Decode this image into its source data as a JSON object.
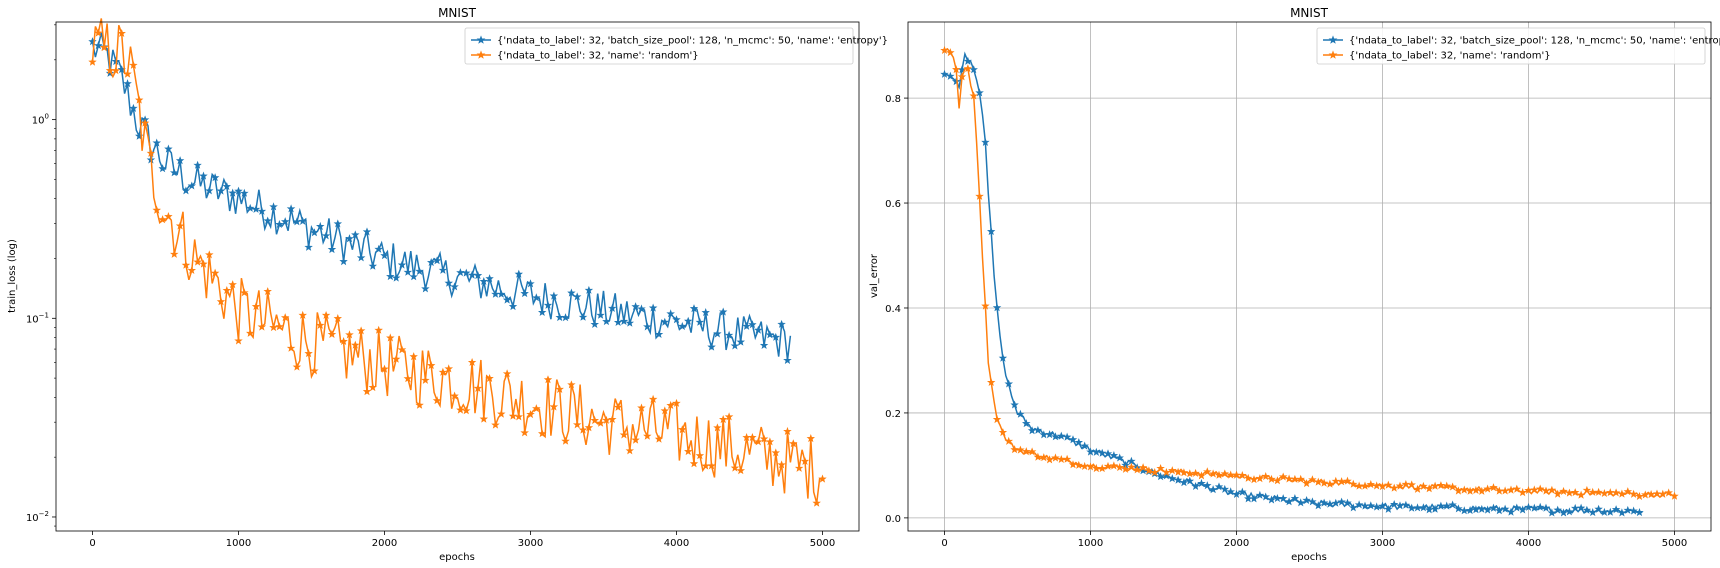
{
  "figure": {
    "background": "#ffffff"
  },
  "chart_data": [
    {
      "type": "line",
      "title": "MNIST",
      "xlabel": "epochs",
      "ylabel": "train_loss (log)",
      "yscale": "log",
      "xlim": [
        -250,
        5250
      ],
      "ylim": [
        0.0085,
        3.1
      ],
      "grid": false,
      "legend_placement": "top-right",
      "xticks": [
        0,
        1000,
        2000,
        3000,
        4000,
        5000
      ],
      "xtick_labels": [
        "0",
        "1000",
        "2000",
        "3000",
        "4000",
        "5000"
      ],
      "yticks": [
        1,
        0.1,
        0.01
      ],
      "ytick_labels": [
        {
          "base": "10",
          "exp": "0"
        },
        {
          "base": "10",
          "exp": "−1"
        },
        {
          "base": "10",
          "exp": "−2"
        }
      ],
      "series": [
        {
          "name": "{'ndata_to_label': 32, 'batch_size_pool': 128, 'n_mcmc': 50, 'name': 'entropy'}",
          "color": "#1f77b4",
          "marker": "star",
          "noise_band": 0.1,
          "x": [
            0,
            100,
            200,
            300,
            400,
            500,
            700,
            1000,
            1500,
            2000,
            2500,
            3000,
            3500,
            4000,
            4500,
            4780
          ],
          "y": [
            2.3,
            2.1,
            1.6,
            1.0,
            0.75,
            0.6,
            0.48,
            0.4,
            0.28,
            0.2,
            0.16,
            0.13,
            0.11,
            0.095,
            0.082,
            0.076
          ]
        },
        {
          "name": "{'ndata_to_label': 32, 'name': 'random'}",
          "color": "#ff7f0e",
          "marker": "star",
          "noise_band": 0.17,
          "x": [
            0,
            100,
            200,
            250,
            300,
            350,
            400,
            500,
            700,
            1000,
            1500,
            2000,
            2500,
            3000,
            3500,
            4000,
            4500,
            5000
          ],
          "y": [
            2.3,
            2.25,
            2.15,
            1.9,
            1.3,
            0.8,
            0.55,
            0.35,
            0.2,
            0.11,
            0.075,
            0.058,
            0.048,
            0.038,
            0.03,
            0.026,
            0.021,
            0.017
          ]
        }
      ]
    },
    {
      "type": "line",
      "title": "MNIST",
      "xlabel": "epochs",
      "ylabel": "val_error",
      "yscale": "linear",
      "xlim": [
        -250,
        5250
      ],
      "ylim": [
        -0.025,
        0.945
      ],
      "grid": true,
      "legend_placement": "top-right",
      "xticks": [
        0,
        1000,
        2000,
        3000,
        4000,
        5000
      ],
      "xtick_labels": [
        "0",
        "1000",
        "2000",
        "3000",
        "4000",
        "5000"
      ],
      "yticks": [
        0.0,
        0.2,
        0.4,
        0.6,
        0.8
      ],
      "ytick_labels": [
        "0.0",
        "0.2",
        "0.4",
        "0.6",
        "0.8"
      ],
      "series": [
        {
          "name": "{'ndata_to_label': 32, 'batch_size_pool': 128, 'n_mcmc': 50, 'name': 'entropy'}",
          "color": "#1f77b4",
          "marker": "star",
          "noise_band": 0.006,
          "x": [
            0,
            50,
            100,
            130,
            150,
            200,
            250,
            280,
            300,
            350,
            400,
            450,
            500,
            600,
            800,
            1000,
            1200,
            1500,
            2000,
            2500,
            3000,
            3500,
            4000,
            4500,
            4780
          ],
          "y": [
            0.85,
            0.84,
            0.82,
            0.88,
            0.88,
            0.86,
            0.8,
            0.72,
            0.62,
            0.42,
            0.3,
            0.24,
            0.2,
            0.17,
            0.155,
            0.13,
            0.11,
            0.08,
            0.045,
            0.028,
            0.022,
            0.019,
            0.016,
            0.014,
            0.013
          ]
        },
        {
          "name": "{'ndata_to_label': 32, 'name': 'random'}",
          "color": "#ff7f0e",
          "marker": "star",
          "noise_band": 0.005,
          "x": [
            0,
            50,
            80,
            100,
            120,
            150,
            200,
            230,
            250,
            280,
            300,
            350,
            400,
            450,
            500,
            700,
            1000,
            1500,
            2000,
            2500,
            3000,
            3500,
            4000,
            4500,
            5000
          ],
          "y": [
            0.89,
            0.89,
            0.85,
            0.78,
            0.84,
            0.87,
            0.8,
            0.68,
            0.55,
            0.4,
            0.3,
            0.2,
            0.16,
            0.14,
            0.13,
            0.115,
            0.1,
            0.09,
            0.08,
            0.07,
            0.062,
            0.056,
            0.051,
            0.047,
            0.044
          ]
        }
      ]
    }
  ]
}
